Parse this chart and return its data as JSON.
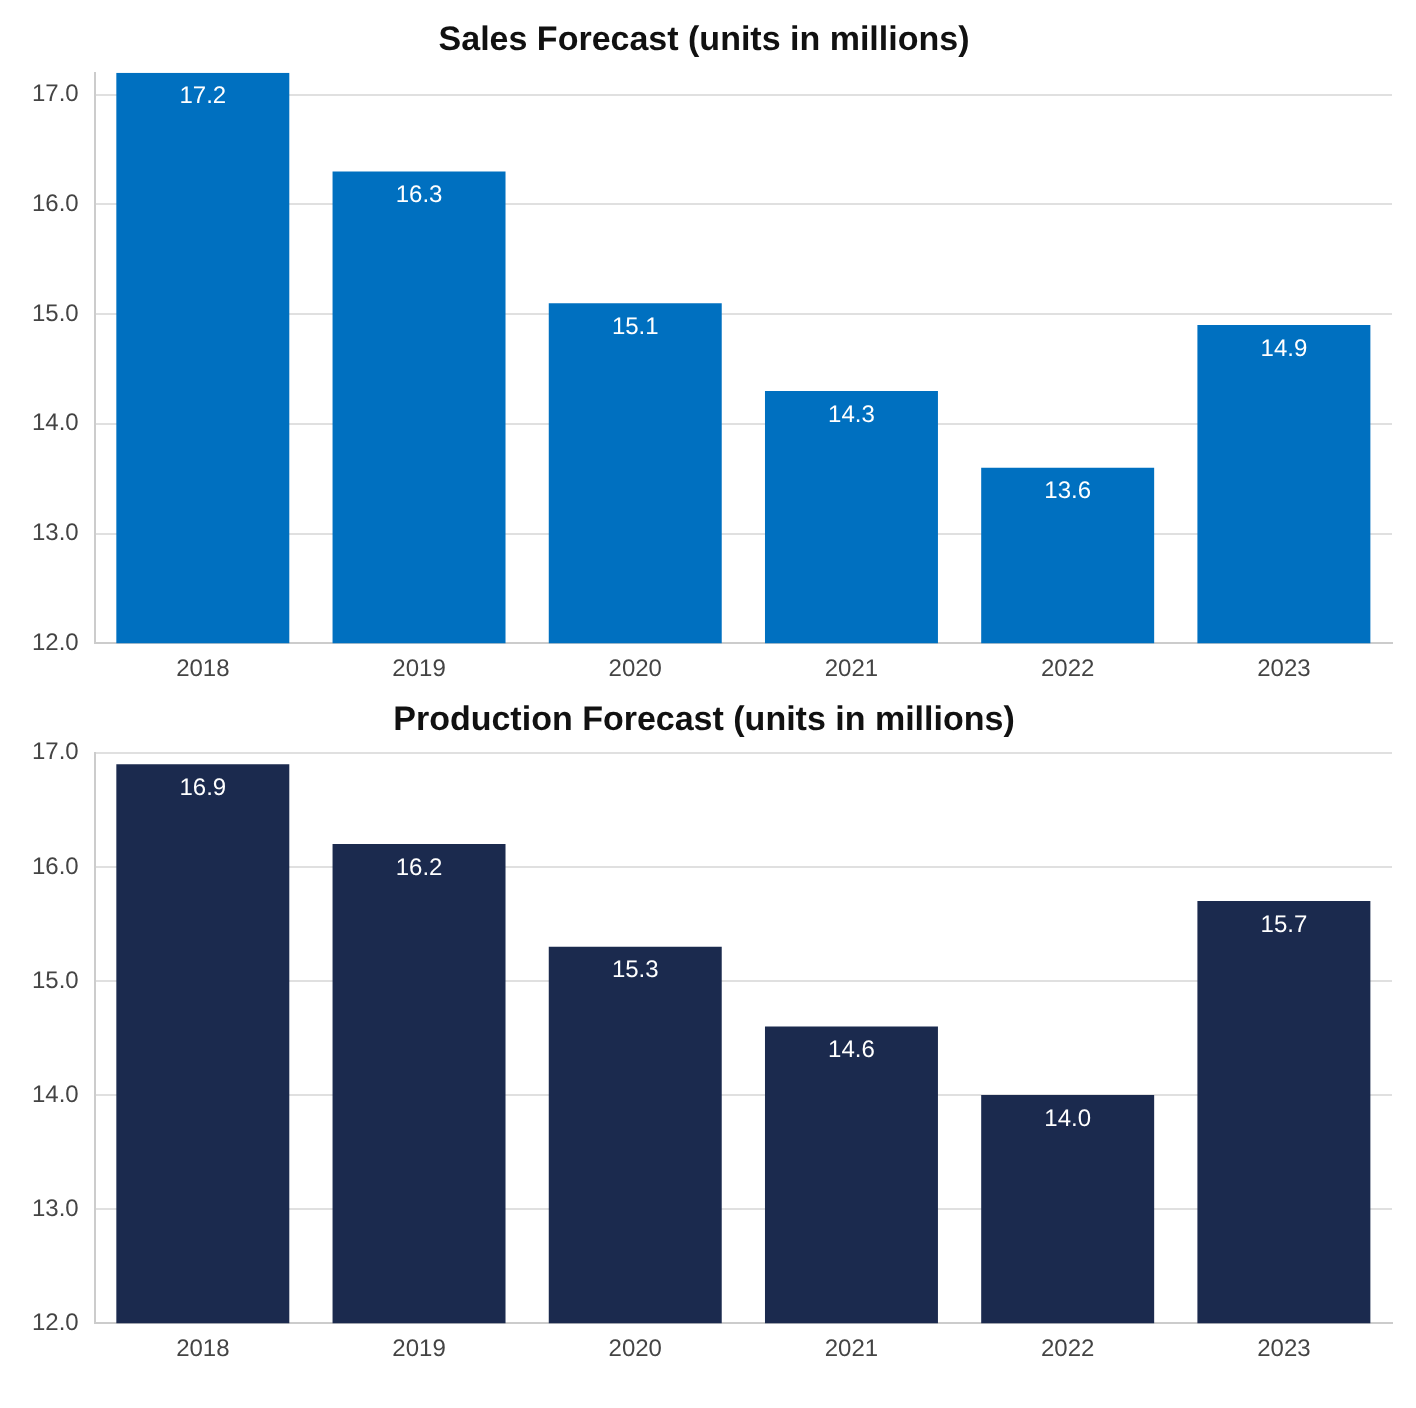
{
  "chart_data": [
    {
      "type": "bar",
      "title": "Sales Forecast (units in millions)",
      "categories": [
        "2018",
        "2019",
        "2020",
        "2021",
        "2022",
        "2023"
      ],
      "values": [
        17.2,
        16.3,
        15.1,
        14.3,
        13.6,
        14.9
      ],
      "color": "#0070c0",
      "ylim": [
        12,
        17.2
      ],
      "yticks": [
        {
          "value": 12,
          "label": "12.0"
        },
        {
          "value": 13,
          "label": "13.0"
        },
        {
          "value": 14,
          "label": "14.0"
        },
        {
          "value": 15,
          "label": "15.0"
        },
        {
          "value": 16,
          "label": "16.0"
        },
        {
          "value": 17,
          "label": "17.0"
        }
      ],
      "grid": "y",
      "value_labels": [
        "17.2",
        "16.3",
        "15.1",
        "14.3",
        "13.6",
        "14.9"
      ]
    },
    {
      "type": "bar",
      "title": "Production Forecast (units in millions)",
      "categories": [
        "2018",
        "2019",
        "2020",
        "2021",
        "2022",
        "2023"
      ],
      "values": [
        16.9,
        16.2,
        15.3,
        14.6,
        14.0,
        15.7
      ],
      "color": "#1b2a4e",
      "ylim": [
        12,
        17
      ],
      "yticks": [
        {
          "value": 12,
          "label": "12.0"
        },
        {
          "value": 13,
          "label": "13.0"
        },
        {
          "value": 14,
          "label": "14.0"
        },
        {
          "value": 15,
          "label": "15.0"
        },
        {
          "value": 16,
          "label": "16.0"
        },
        {
          "value": 17,
          "label": "17.0"
        }
      ],
      "grid": "y",
      "value_labels": [
        "16.9",
        "16.2",
        "15.3",
        "14.6",
        "14.0",
        "15.7"
      ]
    }
  ]
}
